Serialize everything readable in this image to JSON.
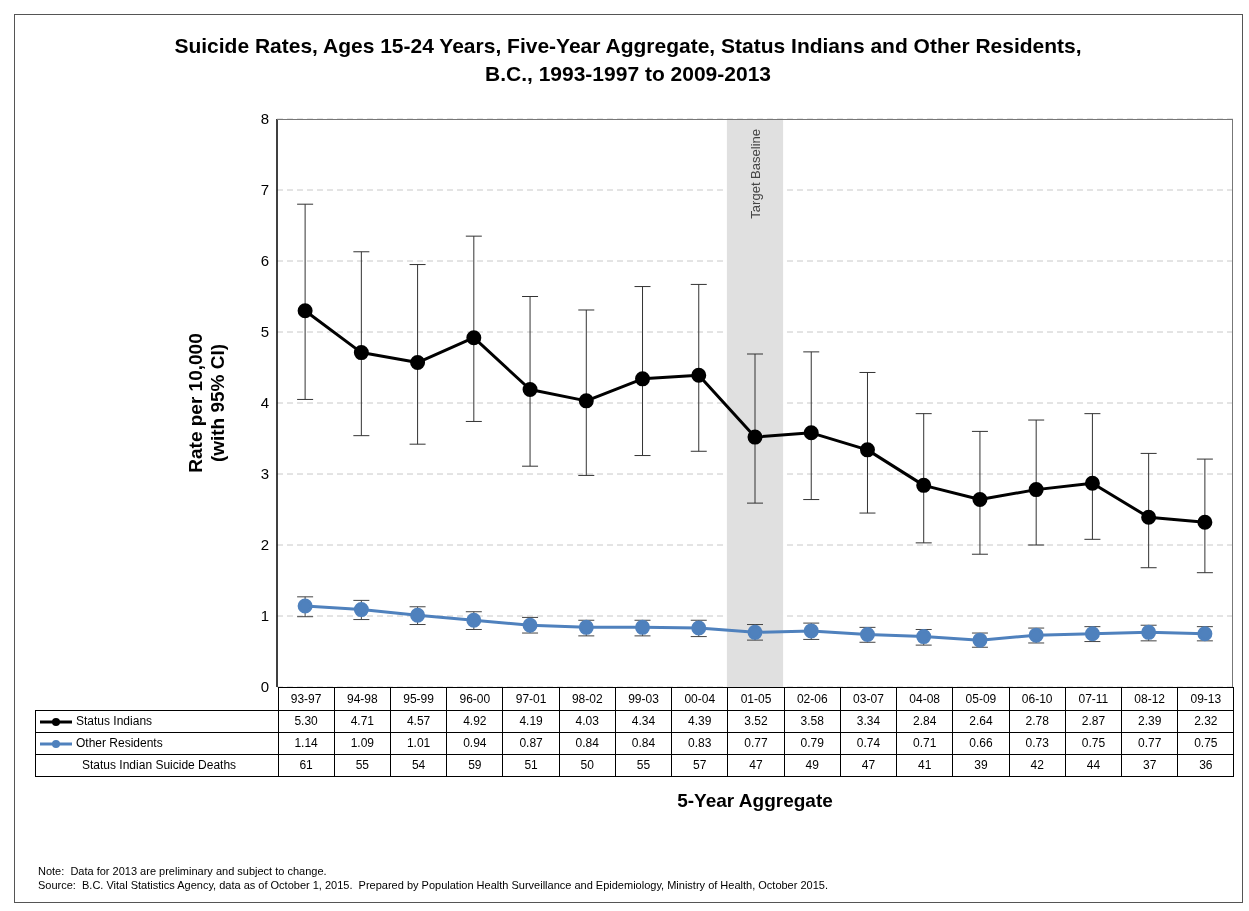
{
  "chart_data": {
    "type": "line",
    "title": "Suicide Rates, Ages 15-24 Years, Five-Year Aggregate, Status Indians and Other Residents, B.C., 1993-1997 to 2009-2013",
    "xlabel": "5-Year Aggregate",
    "ylabel": "Rate per 10,000\n(with 95% CI)",
    "categories": [
      "93-97",
      "94-98",
      "95-99",
      "96-00",
      "97-01",
      "98-02",
      "99-03",
      "00-04",
      "01-05",
      "02-06",
      "03-07",
      "04-08",
      "05-09",
      "06-10",
      "07-11",
      "08-12",
      "09-13"
    ],
    "series": [
      {
        "name": "Status Indians",
        "color": "#000000",
        "values": [
          5.3,
          4.71,
          4.57,
          4.92,
          4.19,
          4.03,
          4.34,
          4.39,
          3.52,
          3.58,
          3.34,
          2.84,
          2.64,
          2.78,
          2.87,
          2.39,
          2.32
        ],
        "value_labels": [
          "5.30",
          "4.71",
          "4.57",
          "4.92",
          "4.19",
          "4.03",
          "4.34",
          "4.39",
          "3.52",
          "3.58",
          "3.34",
          "2.84",
          "2.64",
          "2.78",
          "2.87",
          "2.39",
          "2.32"
        ],
        "errors": [
          [
            4.05,
            6.8
          ],
          [
            3.54,
            6.13
          ],
          [
            3.42,
            5.95
          ],
          [
            3.74,
            6.35
          ],
          [
            3.11,
            5.5
          ],
          [
            2.98,
            5.31
          ],
          [
            3.26,
            5.64
          ],
          [
            3.32,
            5.67
          ],
          [
            2.59,
            4.69
          ],
          [
            2.64,
            4.72
          ],
          [
            2.45,
            4.43
          ],
          [
            2.03,
            3.85
          ],
          [
            1.87,
            3.6
          ],
          [
            2.0,
            3.76
          ],
          [
            2.08,
            3.85
          ],
          [
            1.68,
            3.29
          ],
          [
            1.61,
            3.21
          ]
        ]
      },
      {
        "name": "Other Residents",
        "color": "#4f81bd",
        "values": [
          1.14,
          1.09,
          1.01,
          0.94,
          0.87,
          0.84,
          0.84,
          0.83,
          0.77,
          0.79,
          0.74,
          0.71,
          0.66,
          0.73,
          0.75,
          0.77,
          0.75
        ],
        "value_labels": [
          "1.14",
          "1.09",
          "1.01",
          "0.94",
          "0.87",
          "0.84",
          "0.84",
          "0.83",
          "0.77",
          "0.79",
          "0.74",
          "0.71",
          "0.66",
          "0.73",
          "0.75",
          "0.77",
          "0.75"
        ],
        "errors": [
          [
            0.99,
            1.27
          ],
          [
            0.95,
            1.22
          ],
          [
            0.88,
            1.13
          ],
          [
            0.81,
            1.06
          ],
          [
            0.76,
            0.98
          ],
          [
            0.72,
            0.94
          ],
          [
            0.72,
            0.94
          ],
          [
            0.71,
            0.94
          ],
          [
            0.66,
            0.88
          ],
          [
            0.67,
            0.9
          ],
          [
            0.63,
            0.84
          ],
          [
            0.59,
            0.81
          ],
          [
            0.56,
            0.76
          ],
          [
            0.62,
            0.83
          ],
          [
            0.64,
            0.85
          ],
          [
            0.65,
            0.87
          ],
          [
            0.65,
            0.85
          ]
        ]
      }
    ],
    "ylim": [
      0,
      8
    ],
    "yticks": [
      0,
      1,
      2,
      3,
      4,
      5,
      6,
      7,
      8
    ],
    "grid": "y",
    "marker": "circle",
    "line_style": "solid",
    "legend": "bottom",
    "data_labels": true,
    "bands": [
      {
        "axis": "x",
        "from": "01-05",
        "to": "01-05",
        "label": "Target Baseline",
        "color": "#e0e0e0"
      }
    ],
    "annotations": [
      "Status Indian Suicide Deaths",
      "61",
      "55",
      "54",
      "59",
      "51",
      "50",
      "55",
      "57",
      "47",
      "49",
      "47",
      "41",
      "39",
      "42",
      "44",
      "37",
      "36",
      "Note:  Data for 2013 are preliminary and subject to change.",
      "Source:  B.C. Vital Statistics Agency, data as of October 1, 2015.  Prepared by Population Health Surveillance and Epidemiology, Ministry of Health, October 2015."
    ]
  }
}
